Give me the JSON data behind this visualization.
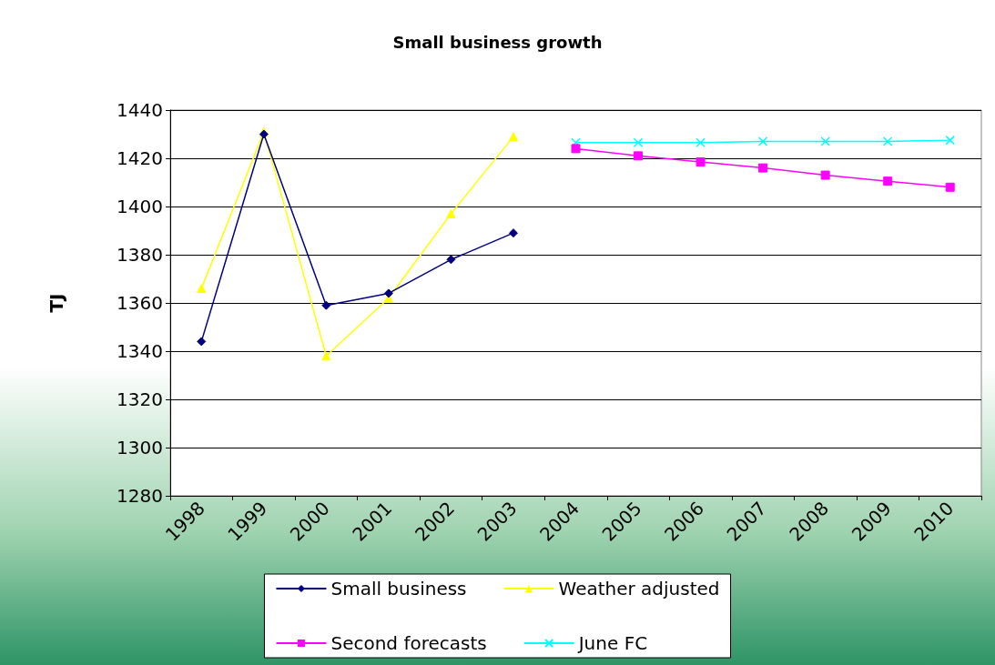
{
  "chart_data": {
    "type": "line",
    "title": "Small business growth",
    "ylabel": "TJ",
    "categories": [
      "1998",
      "1999",
      "2000",
      "2001",
      "2002",
      "2003",
      "2004",
      "2005",
      "2006",
      "2007",
      "2008",
      "2009",
      "2010"
    ],
    "series": [
      {
        "name": "Small business",
        "color": "#000080",
        "marker": "diamond",
        "values": [
          1344,
          1430,
          1359,
          1364,
          1378,
          1389,
          null,
          null,
          null,
          null,
          null,
          null,
          null
        ]
      },
      {
        "name": "Weather adjusted",
        "color": "#ffff00",
        "marker": "triangle",
        "values": [
          1366,
          1431,
          1338,
          1362,
          1397,
          1429,
          null,
          null,
          null,
          null,
          null,
          null,
          null
        ]
      },
      {
        "name": "Second forecasts",
        "color": "#ff00ff",
        "marker": "square",
        "values": [
          null,
          null,
          null,
          null,
          null,
          null,
          1424,
          1421,
          1418.5,
          1416,
          1413,
          1410.5,
          1408
        ]
      },
      {
        "name": "June FC",
        "color": "#00ffff",
        "marker": "cross",
        "values": [
          null,
          null,
          null,
          null,
          null,
          null,
          1426.5,
          1426.5,
          1426.5,
          1427,
          1427,
          1427,
          1427.5
        ]
      }
    ],
    "ylim": [
      1280,
      1440
    ],
    "yticks": [
      1280,
      1300,
      1320,
      1340,
      1360,
      1380,
      1400,
      1420,
      1440
    ],
    "grid": "y",
    "legend": "bottom",
    "line_style": "solid"
  }
}
